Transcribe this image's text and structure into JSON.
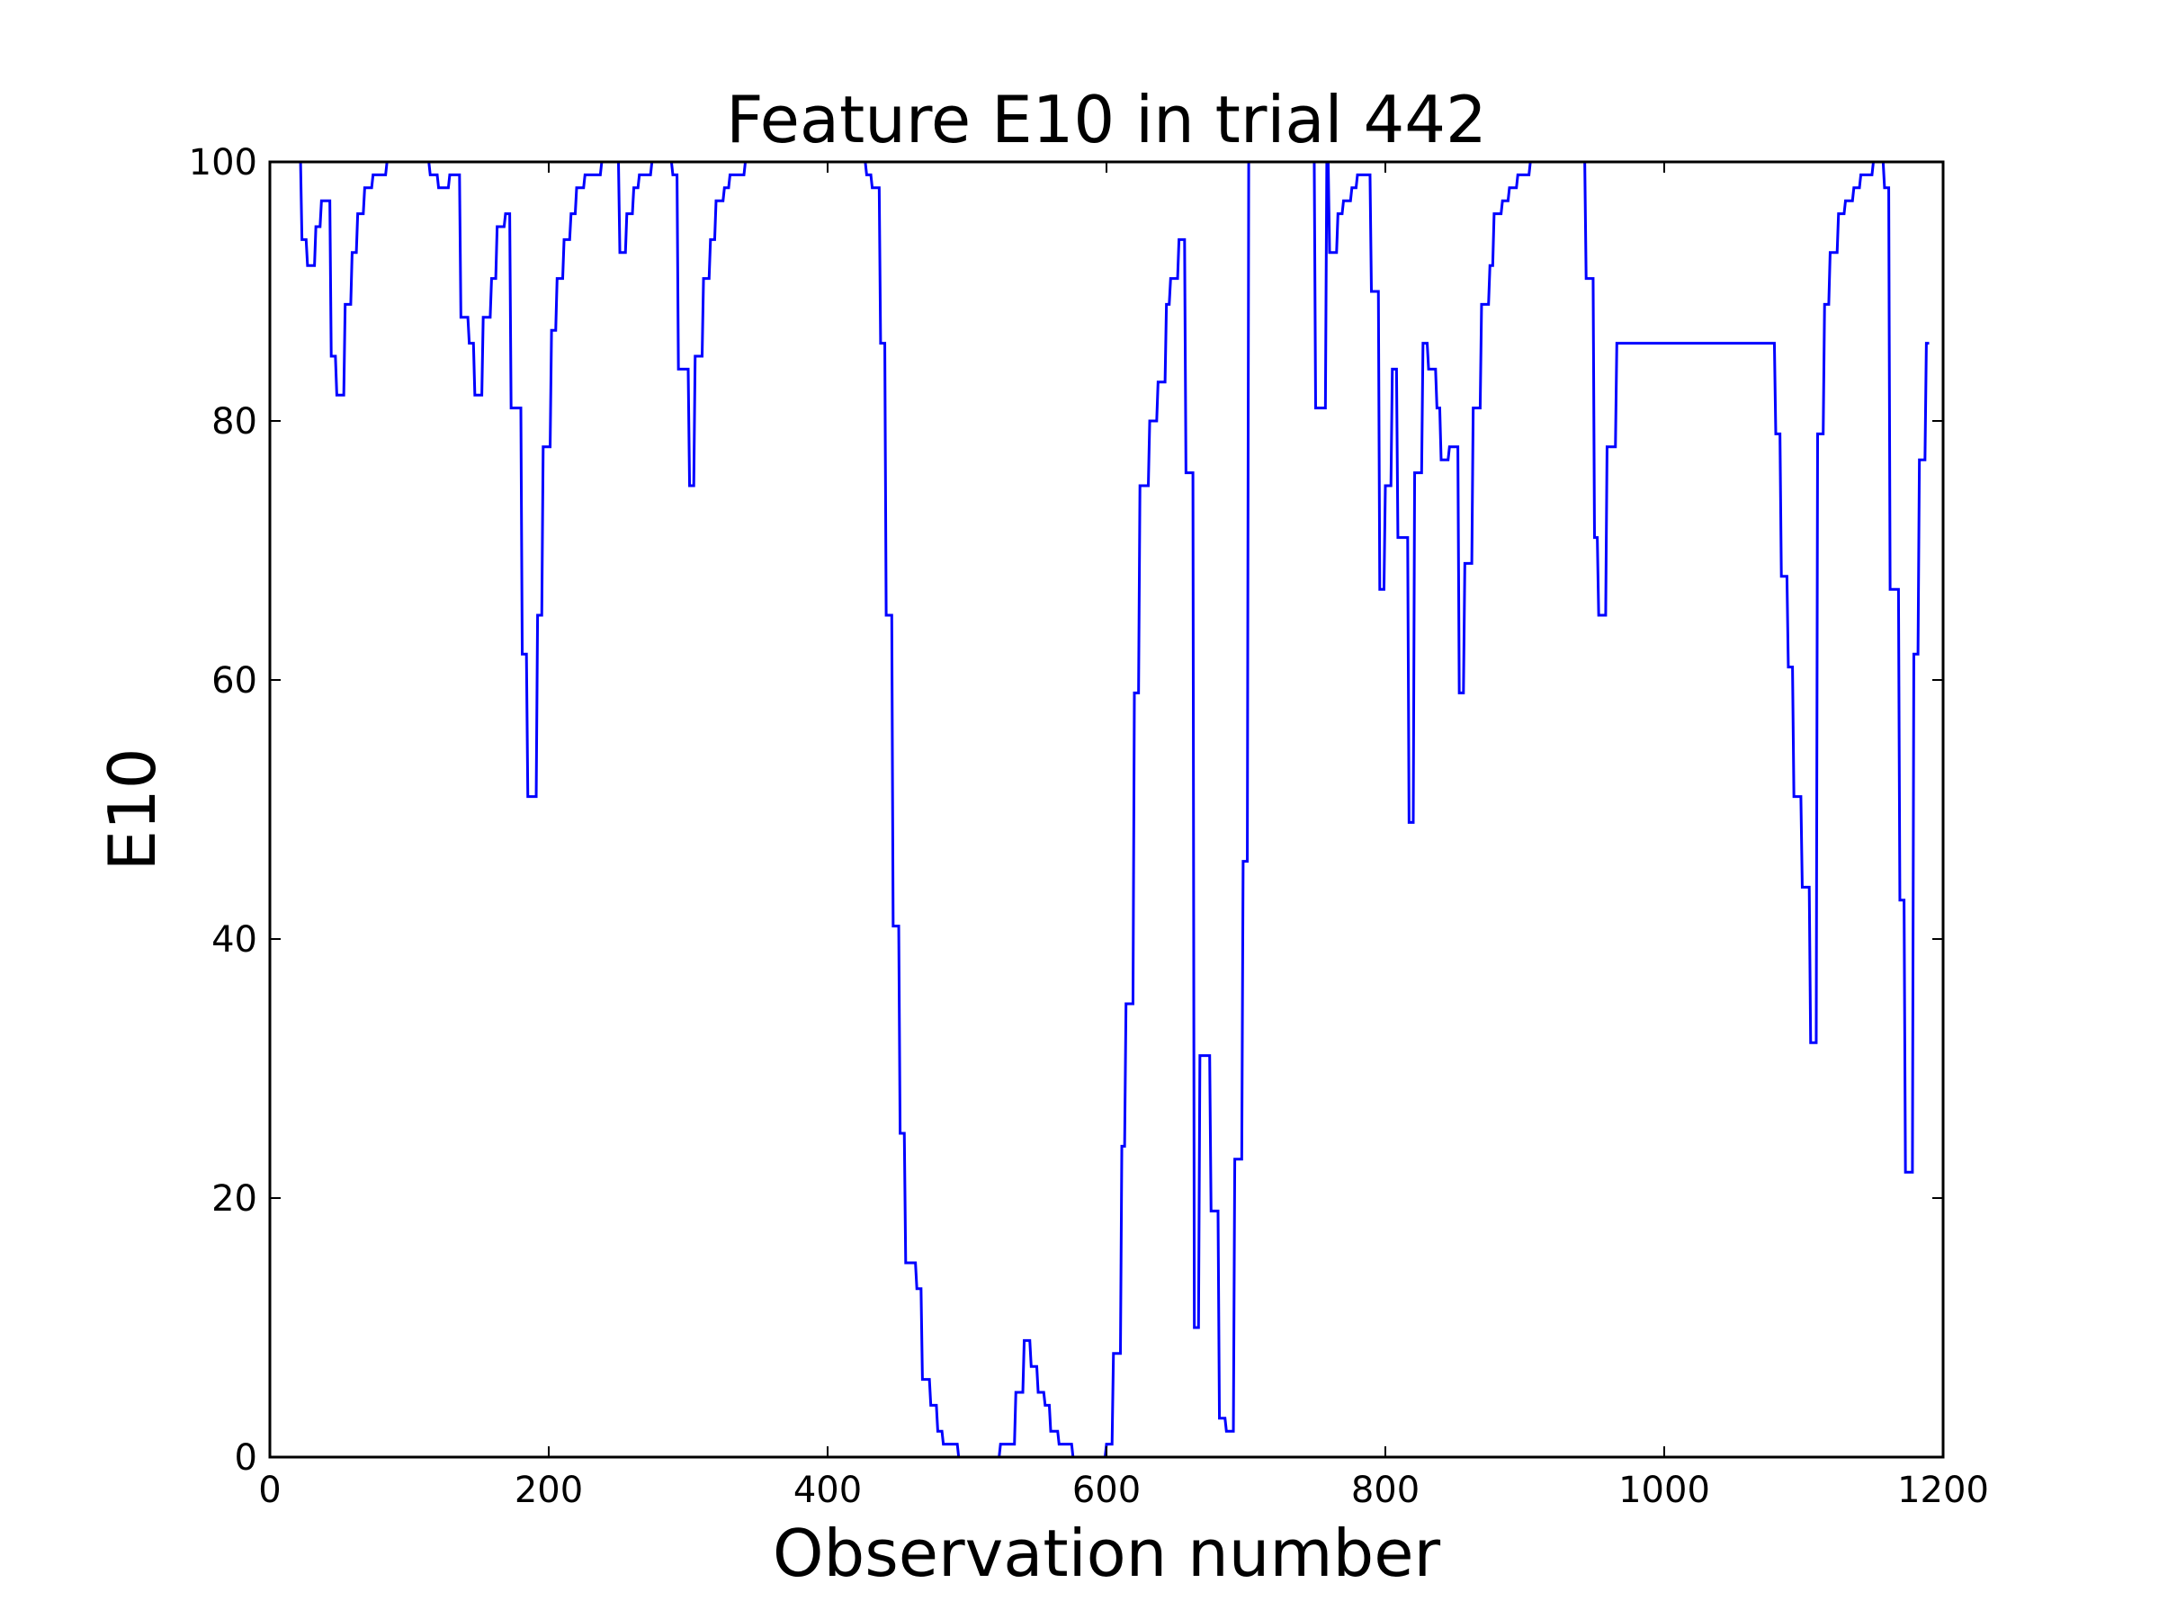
{
  "chart_data": {
    "type": "line",
    "title": "Feature E10 in trial 442",
    "xlabel": "Observation number",
    "ylabel": "E10",
    "xlim": [
      0,
      1200
    ],
    "ylim": [
      0,
      100
    ],
    "x_ticks": [
      0,
      200,
      400,
      600,
      800,
      1000,
      1200
    ],
    "x_tick_labels": [
      "0",
      "200",
      "400",
      "600",
      "800",
      "1000",
      "1200"
    ],
    "y_ticks": [
      0,
      20,
      40,
      60,
      80,
      100
    ],
    "y_tick_labels": [
      "0",
      "20",
      "40",
      "60",
      "80",
      "100"
    ],
    "grid": false,
    "line_color": "#0000ff",
    "series": [
      {
        "points": [
          [
            22,
            100
          ],
          [
            23,
            94
          ],
          [
            26,
            94
          ],
          [
            27,
            92
          ],
          [
            32,
            92
          ],
          [
            33,
            95
          ],
          [
            36,
            95
          ],
          [
            37,
            97
          ],
          [
            43,
            97
          ],
          [
            44,
            85
          ],
          [
            47,
            85
          ],
          [
            48,
            82
          ],
          [
            53,
            82
          ],
          [
            54,
            89
          ],
          [
            58,
            89
          ],
          [
            59,
            93
          ],
          [
            62,
            93
          ],
          [
            63,
            96
          ],
          [
            67,
            96
          ],
          [
            68,
            98
          ],
          [
            73,
            98
          ],
          [
            74,
            99
          ],
          [
            83,
            99
          ],
          [
            84,
            100
          ],
          [
            114,
            100
          ],
          [
            115,
            99
          ],
          [
            120,
            99
          ],
          [
            121,
            98
          ],
          [
            128,
            98
          ],
          [
            129,
            99
          ],
          [
            136,
            99
          ],
          [
            137,
            88
          ],
          [
            142,
            88
          ],
          [
            143,
            86
          ],
          [
            146,
            86
          ],
          [
            147,
            82
          ],
          [
            152,
            82
          ],
          [
            153,
            88
          ],
          [
            158,
            88
          ],
          [
            159,
            91
          ],
          [
            162,
            91
          ],
          [
            163,
            95
          ],
          [
            168,
            95
          ],
          [
            169,
            96
          ],
          [
            172,
            96
          ],
          [
            173,
            81
          ],
          [
            180,
            81
          ],
          [
            181,
            62
          ],
          [
            184,
            62
          ],
          [
            185,
            51
          ],
          [
            191,
            51
          ],
          [
            192,
            65
          ],
          [
            195,
            65
          ],
          [
            196,
            78
          ],
          [
            201,
            78
          ],
          [
            202,
            87
          ],
          [
            205,
            87
          ],
          [
            206,
            91
          ],
          [
            210,
            91
          ],
          [
            211,
            94
          ],
          [
            215,
            94
          ],
          [
            216,
            96
          ],
          [
            219,
            96
          ],
          [
            220,
            98
          ],
          [
            225,
            98
          ],
          [
            226,
            99
          ],
          [
            237,
            99
          ],
          [
            238,
            100
          ],
          [
            250,
            100
          ],
          [
            251,
            93
          ],
          [
            255,
            93
          ],
          [
            256,
            96
          ],
          [
            260,
            96
          ],
          [
            261,
            98
          ],
          [
            264,
            98
          ],
          [
            265,
            99
          ],
          [
            273,
            99
          ],
          [
            274,
            100
          ],
          [
            288,
            100
          ],
          [
            289,
            99
          ],
          [
            292,
            99
          ],
          [
            293,
            84
          ],
          [
            300,
            84
          ],
          [
            301,
            75
          ],
          [
            304,
            75
          ],
          [
            305,
            85
          ],
          [
            310,
            85
          ],
          [
            311,
            91
          ],
          [
            315,
            91
          ],
          [
            316,
            94
          ],
          [
            319,
            94
          ],
          [
            320,
            97
          ],
          [
            325,
            97
          ],
          [
            326,
            98
          ],
          [
            329,
            98
          ],
          [
            330,
            99
          ],
          [
            340,
            99
          ],
          [
            341,
            100
          ],
          [
            427,
            100
          ],
          [
            428,
            99
          ],
          [
            431,
            99
          ],
          [
            432,
            98
          ],
          [
            437,
            98
          ],
          [
            438,
            86
          ],
          [
            441,
            86
          ],
          [
            442,
            65
          ],
          [
            446,
            65
          ],
          [
            447,
            41
          ],
          [
            451,
            41
          ],
          [
            452,
            25
          ],
          [
            455,
            25
          ],
          [
            456,
            15
          ],
          [
            463,
            15
          ],
          [
            464,
            13
          ],
          [
            467,
            13
          ],
          [
            468,
            6
          ],
          [
            473,
            6
          ],
          [
            474,
            4
          ],
          [
            478,
            4
          ],
          [
            479,
            2
          ],
          [
            482,
            2
          ],
          [
            483,
            1
          ],
          [
            493,
            1
          ],
          [
            494,
            0
          ],
          [
            523,
            0
          ],
          [
            524,
            1
          ],
          [
            534,
            1
          ],
          [
            535,
            5
          ],
          [
            540,
            5
          ],
          [
            541,
            9
          ],
          [
            545,
            9
          ],
          [
            546,
            7
          ],
          [
            550,
            7
          ],
          [
            551,
            5
          ],
          [
            555,
            5
          ],
          [
            556,
            4
          ],
          [
            559,
            4
          ],
          [
            560,
            2
          ],
          [
            565,
            2
          ],
          [
            566,
            1
          ],
          [
            575,
            1
          ],
          [
            576,
            0
          ],
          [
            599,
            0
          ],
          [
            600,
            1
          ],
          [
            604,
            1
          ],
          [
            605,
            8
          ],
          [
            610,
            8
          ],
          [
            611,
            24
          ],
          [
            613,
            24
          ],
          [
            614,
            35
          ],
          [
            619,
            35
          ],
          [
            620,
            59
          ],
          [
            623,
            59
          ],
          [
            624,
            75
          ],
          [
            630,
            75
          ],
          [
            631,
            80
          ],
          [
            636,
            80
          ],
          [
            637,
            83
          ],
          [
            642,
            83
          ],
          [
            643,
            89
          ],
          [
            645,
            89
          ],
          [
            646,
            91
          ],
          [
            651,
            91
          ],
          [
            652,
            94
          ],
          [
            656,
            94
          ],
          [
            657,
            76
          ],
          [
            662,
            76
          ],
          [
            663,
            10
          ],
          [
            666,
            10
          ],
          [
            667,
            31
          ],
          [
            674,
            31
          ],
          [
            675,
            19
          ],
          [
            680,
            19
          ],
          [
            681,
            3
          ],
          [
            685,
            3
          ],
          [
            686,
            2
          ],
          [
            691,
            2
          ],
          [
            692,
            23
          ],
          [
            697,
            23
          ],
          [
            698,
            46
          ],
          [
            701,
            46
          ],
          [
            702,
            100
          ],
          [
            749,
            100
          ],
          [
            750,
            81
          ],
          [
            757,
            81
          ],
          [
            758,
            100
          ],
          [
            759,
            100
          ],
          [
            760,
            93
          ],
          [
            765,
            93
          ],
          [
            766,
            96
          ],
          [
            769,
            96
          ],
          [
            770,
            97
          ],
          [
            775,
            97
          ],
          [
            776,
            98
          ],
          [
            779,
            98
          ],
          [
            780,
            99
          ],
          [
            789,
            99
          ],
          [
            790,
            90
          ],
          [
            795,
            90
          ],
          [
            796,
            67
          ],
          [
            799,
            67
          ],
          [
            800,
            75
          ],
          [
            804,
            75
          ],
          [
            805,
            84
          ],
          [
            808,
            84
          ],
          [
            809,
            71
          ],
          [
            816,
            71
          ],
          [
            817,
            49
          ],
          [
            820,
            49
          ],
          [
            821,
            76
          ],
          [
            826,
            76
          ],
          [
            827,
            86
          ],
          [
            830,
            86
          ],
          [
            831,
            84
          ],
          [
            836,
            84
          ],
          [
            837,
            81
          ],
          [
            839,
            81
          ],
          [
            840,
            77
          ],
          [
            845,
            77
          ],
          [
            846,
            78
          ],
          [
            852,
            78
          ],
          [
            853,
            59
          ],
          [
            856,
            59
          ],
          [
            857,
            69
          ],
          [
            862,
            69
          ],
          [
            863,
            81
          ],
          [
            868,
            81
          ],
          [
            869,
            89
          ],
          [
            874,
            89
          ],
          [
            875,
            92
          ],
          [
            877,
            92
          ],
          [
            878,
            96
          ],
          [
            883,
            96
          ],
          [
            884,
            97
          ],
          [
            888,
            97
          ],
          [
            889,
            98
          ],
          [
            894,
            98
          ],
          [
            895,
            99
          ],
          [
            903,
            99
          ],
          [
            904,
            100
          ],
          [
            943,
            100
          ],
          [
            944,
            91
          ],
          [
            949,
            91
          ],
          [
            950,
            71
          ],
          [
            952,
            71
          ],
          [
            953,
            65
          ],
          [
            958,
            65
          ],
          [
            959,
            78
          ],
          [
            965,
            78
          ],
          [
            966,
            86
          ],
          [
            1079,
            86
          ],
          [
            1080,
            79
          ],
          [
            1083,
            79
          ],
          [
            1084,
            68
          ],
          [
            1088,
            68
          ],
          [
            1089,
            61
          ],
          [
            1092,
            61
          ],
          [
            1093,
            51
          ],
          [
            1098,
            51
          ],
          [
            1099,
            44
          ],
          [
            1104,
            44
          ],
          [
            1105,
            32
          ],
          [
            1109,
            32
          ],
          [
            1110,
            79
          ],
          [
            1114,
            79
          ],
          [
            1115,
            89
          ],
          [
            1118,
            89
          ],
          [
            1119,
            93
          ],
          [
            1124,
            93
          ],
          [
            1125,
            96
          ],
          [
            1129,
            96
          ],
          [
            1130,
            97
          ],
          [
            1135,
            97
          ],
          [
            1136,
            98
          ],
          [
            1140,
            98
          ],
          [
            1141,
            99
          ],
          [
            1149,
            99
          ],
          [
            1150,
            100
          ],
          [
            1157,
            100
          ],
          [
            1158,
            98
          ],
          [
            1161,
            98
          ],
          [
            1162,
            67
          ],
          [
            1168,
            67
          ],
          [
            1169,
            43
          ],
          [
            1172,
            43
          ],
          [
            1173,
            22
          ],
          [
            1178,
            22
          ],
          [
            1179,
            62
          ],
          [
            1182,
            62
          ],
          [
            1183,
            77
          ],
          [
            1187,
            77
          ],
          [
            1188,
            86
          ],
          [
            1190,
            86
          ]
        ]
      }
    ]
  }
}
